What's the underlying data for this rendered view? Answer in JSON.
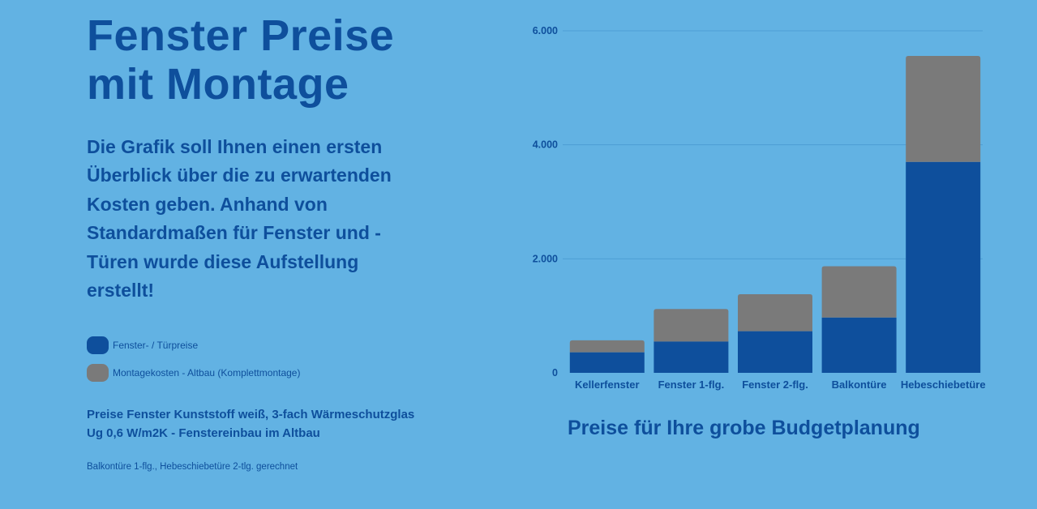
{
  "page": {
    "title_line1": "Fenster Preise",
    "title_line2": "mit Montage",
    "intro": "Die Grafik soll Ihnen einen ersten Überblick über die zu erwartenden Kosten geben. Anhand von Standardmaßen für Fenster und -Türen wurde diese Aufstellung erstellt!",
    "note_main": "Preise Fenster Kunststoff weiß, 3-fach Wärmeschutzglas Ug 0,6 W/m2K - Fenstereinbau im Altbau",
    "note_small": "Balkontüre 1-flg., Hebeschiebetüre 2-tlg. gerechnet",
    "caption": "Preise für Ihre grobe Budgetplanung"
  },
  "colors": {
    "background": "#62b2e3",
    "text": "#0e4f9c",
    "series1": "#0e4f9c",
    "series2": "#7a7a7a",
    "grid": "#4e9ed4"
  },
  "chart_data": {
    "type": "bar",
    "stacked": true,
    "categories": [
      "Kellerfenster",
      "Fenster 1-flg.",
      "Fenster 2-flg.",
      "Balkontüre",
      "Hebeschiebetüre"
    ],
    "series": [
      {
        "name": "Fenster- / Türpreise",
        "values": [
          360,
          550,
          730,
          970,
          3700
        ]
      },
      {
        "name": "Montagekosten - Altbau (Komplettmontage)",
        "values": [
          210,
          570,
          650,
          900,
          1860
        ]
      }
    ],
    "ylim": [
      0,
      6000
    ],
    "yticks": [
      0,
      2000,
      4000,
      6000
    ],
    "ytick_labels": [
      "0",
      "2.000",
      "4.000",
      "6.000"
    ],
    "grid": true,
    "legend_position": "left"
  }
}
